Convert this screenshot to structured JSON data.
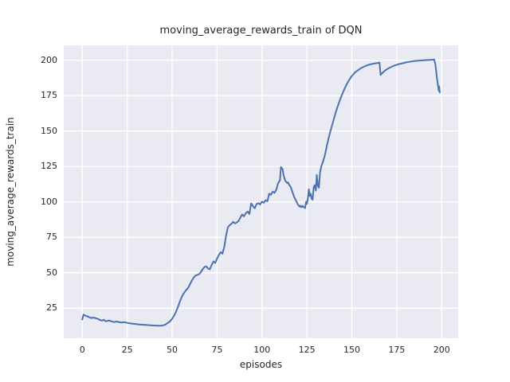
{
  "figure": {
    "background": "#ffffff"
  },
  "chart_data": {
    "type": "line",
    "title": "moving_average_rewards_train of DQN",
    "xlabel": "episodes",
    "ylabel": "moving_average_rewards_train",
    "xlim": [
      -10.3,
      209.2
    ],
    "ylim": [
      3.8,
      210.5
    ],
    "xticks": [
      0,
      25,
      50,
      75,
      100,
      125,
      150,
      175,
      200
    ],
    "yticks": [
      25,
      50,
      75,
      100,
      125,
      150,
      175,
      200
    ],
    "grid": true,
    "legend": "none",
    "plot_bg": "#EAEAF2",
    "grid_color": "#FFFFFF",
    "line_color": "#4C72B0",
    "line_width": 2,
    "series": [
      {
        "name": "DQN",
        "points": [
          [
            0,
            17
          ],
          [
            0.7,
            20.4
          ],
          [
            2,
            19.6
          ],
          [
            3,
            19.2
          ],
          [
            4,
            18.6
          ],
          [
            5,
            18
          ],
          [
            6,
            18.4
          ],
          [
            8,
            17.8
          ],
          [
            10,
            16.6
          ],
          [
            11,
            16.2
          ],
          [
            12,
            16.9
          ],
          [
            13,
            15.8
          ],
          [
            14,
            16
          ],
          [
            15,
            16.3
          ],
          [
            16,
            15.8
          ],
          [
            17,
            15.4
          ],
          [
            18,
            15.2
          ],
          [
            19,
            15.6
          ],
          [
            21,
            15.1
          ],
          [
            22,
            14.8
          ],
          [
            23,
            15.2
          ],
          [
            24,
            14.9
          ],
          [
            26,
            14.4
          ],
          [
            28,
            14.1
          ],
          [
            30,
            13.8
          ],
          [
            32,
            13.5
          ],
          [
            34,
            13.3
          ],
          [
            36,
            13.1
          ],
          [
            38,
            12.9
          ],
          [
            40,
            12.8
          ],
          [
            42,
            12.7
          ],
          [
            44,
            12.6
          ],
          [
            45,
            12.9
          ],
          [
            46,
            13.3
          ],
          [
            47,
            14.1
          ],
          [
            48,
            15
          ],
          [
            49,
            16
          ],
          [
            50,
            17.5
          ],
          [
            51,
            19.5
          ],
          [
            52,
            22
          ],
          [
            53,
            25
          ],
          [
            54,
            28.5
          ],
          [
            55,
            32
          ],
          [
            56,
            34.5
          ],
          [
            57,
            36.5
          ],
          [
            58,
            38
          ],
          [
            59,
            39.5
          ],
          [
            60,
            42
          ],
          [
            61,
            44.5
          ],
          [
            62,
            46.5
          ],
          [
            63,
            48
          ],
          [
            64,
            48.5
          ],
          [
            65,
            49
          ],
          [
            66,
            50.5
          ],
          [
            67,
            52.5
          ],
          [
            68,
            54
          ],
          [
            69,
            54.5
          ],
          [
            70,
            53
          ],
          [
            71,
            52.5
          ],
          [
            72,
            55.5
          ],
          [
            73,
            58
          ],
          [
            74,
            57
          ],
          [
            75,
            60
          ],
          [
            76,
            62.5
          ],
          [
            77,
            64.5
          ],
          [
            78,
            63.5
          ],
          [
            79,
            68
          ],
          [
            80,
            76
          ],
          [
            81,
            82
          ],
          [
            82,
            83.5
          ],
          [
            83,
            84.5
          ],
          [
            84,
            86
          ],
          [
            85,
            84.8
          ],
          [
            86,
            85.6
          ],
          [
            87,
            86.6
          ],
          [
            88,
            89
          ],
          [
            89,
            91.2
          ],
          [
            90,
            89.8
          ],
          [
            91,
            92
          ],
          [
            92,
            93.2
          ],
          [
            93,
            91.5
          ],
          [
            94,
            99
          ],
          [
            95,
            97
          ],
          [
            96,
            95.5
          ],
          [
            97,
            98.5
          ],
          [
            98,
            99.2
          ],
          [
            99,
            98.2
          ],
          [
            100,
            100.2
          ],
          [
            101,
            99.4
          ],
          [
            102,
            101.3
          ],
          [
            103,
            100.4
          ],
          [
            104,
            105.8
          ],
          [
            105,
            105
          ],
          [
            106,
            107.3
          ],
          [
            107,
            106.4
          ],
          [
            108,
            108.7
          ],
          [
            109,
            113.2
          ],
          [
            110,
            115.2
          ],
          [
            110.6,
            124.6
          ],
          [
            111.5,
            123
          ],
          [
            112,
            119
          ],
          [
            113,
            114.8
          ],
          [
            114,
            113.4
          ],
          [
            114.5,
            113.8
          ],
          [
            115,
            112.3
          ],
          [
            116,
            110.5
          ],
          [
            117,
            106.8
          ],
          [
            118,
            103.3
          ],
          [
            119,
            100.8
          ],
          [
            120,
            98.2
          ],
          [
            121,
            96.6
          ],
          [
            121.5,
            97.4
          ],
          [
            122,
            96.2
          ],
          [
            122.7,
            97.2
          ],
          [
            123.3,
            96.3
          ],
          [
            124,
            95.7
          ],
          [
            124.6,
            100.2
          ],
          [
            125,
            98.6
          ],
          [
            125.5,
            102
          ],
          [
            126.1,
            109
          ],
          [
            126.6,
            104.2
          ],
          [
            127.1,
            105.8
          ],
          [
            127.6,
            102.4
          ],
          [
            128.2,
            101.6
          ],
          [
            128.8,
            110.6
          ],
          [
            129.4,
            111.8
          ],
          [
            130,
            108
          ],
          [
            130.5,
            119
          ],
          [
            131.1,
            111.5
          ],
          [
            131.7,
            110
          ],
          [
            132.3,
            120.8
          ],
          [
            133,
            125
          ],
          [
            134,
            128.6
          ],
          [
            135,
            133
          ],
          [
            136,
            139
          ],
          [
            137,
            144.5
          ],
          [
            138,
            149.5
          ],
          [
            139,
            154
          ],
          [
            140,
            158.5
          ],
          [
            141,
            163
          ],
          [
            142,
            167
          ],
          [
            143,
            170.5
          ],
          [
            144,
            174
          ],
          [
            145,
            177
          ],
          [
            146,
            180
          ],
          [
            147,
            182.6
          ],
          [
            148,
            185
          ],
          [
            149,
            187
          ],
          [
            150,
            188.9
          ],
          [
            151,
            190.3
          ],
          [
            152,
            191.6
          ],
          [
            153,
            192.6
          ],
          [
            154,
            193.5
          ],
          [
            155,
            194.3
          ],
          [
            156,
            195
          ],
          [
            157,
            195.6
          ],
          [
            158,
            196.1
          ],
          [
            159,
            196.6
          ],
          [
            160,
            197
          ],
          [
            161,
            197.3
          ],
          [
            162,
            197.6
          ],
          [
            163,
            197.8
          ],
          [
            164,
            198
          ],
          [
            165.4,
            198.3
          ],
          [
            166,
            189.6
          ],
          [
            167,
            191
          ],
          [
            168,
            192.2
          ],
          [
            169,
            193.2
          ],
          [
            170,
            194
          ],
          [
            171,
            194.7
          ],
          [
            172,
            195.3
          ],
          [
            173,
            195.9
          ],
          [
            174,
            196.4
          ],
          [
            175,
            196.8
          ],
          [
            176,
            197.2
          ],
          [
            177,
            197.5
          ],
          [
            178,
            197.8
          ],
          [
            179,
            198.1
          ],
          [
            180,
            198.4
          ],
          [
            181,
            198.7
          ],
          [
            182,
            198.9
          ],
          [
            183,
            199.1
          ],
          [
            184,
            199.3
          ],
          [
            185,
            199.5
          ],
          [
            186,
            199.6
          ],
          [
            187,
            199.7
          ],
          [
            188,
            199.8
          ],
          [
            189,
            199.9
          ],
          [
            190,
            200
          ],
          [
            191,
            200.1
          ],
          [
            192,
            200.1
          ],
          [
            193,
            200.2
          ],
          [
            194,
            200.3
          ],
          [
            195,
            200.4
          ],
          [
            195.8,
            200.5
          ],
          [
            196.5,
            197
          ],
          [
            197.3,
            188
          ],
          [
            198,
            182
          ],
          [
            198.4,
            178.5
          ],
          [
            198.6,
            181.5
          ],
          [
            198.9,
            177.2
          ]
        ]
      }
    ]
  }
}
